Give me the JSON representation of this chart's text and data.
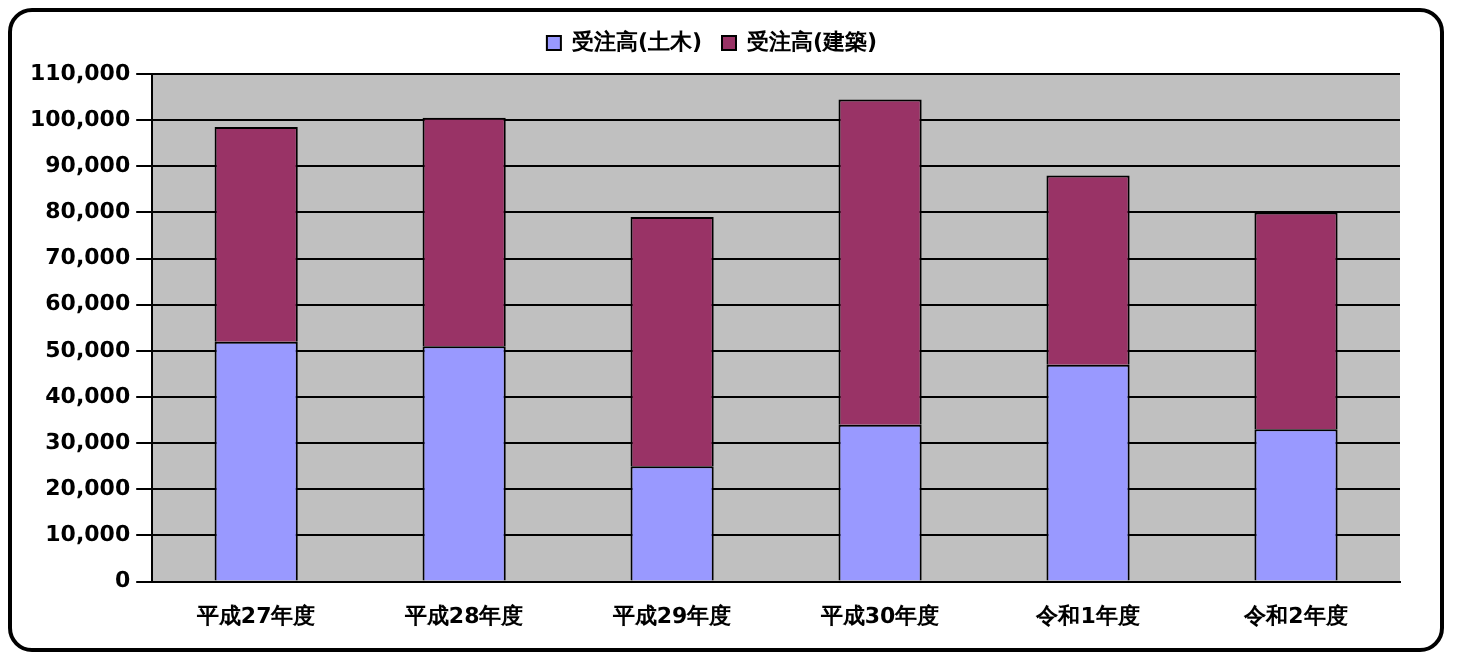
{
  "chart_data": {
    "type": "bar",
    "stacked": true,
    "categories": [
      "平成27年度",
      "平成28年度",
      "平成29年度",
      "平成30年度",
      "令和1年度",
      "令和2年度"
    ],
    "series": [
      {
        "name": "受注高(土木)",
        "color": "#9999ff",
        "values": [
          52000,
          51000,
          25000,
          34000,
          47000,
          33000
        ]
      },
      {
        "name": "受注高(建築)",
        "color": "#993366",
        "values": [
          46500,
          49500,
          54000,
          70500,
          41000,
          47000
        ]
      }
    ],
    "ylim": [
      0,
      110000
    ],
    "yticks": [
      0,
      {
        "value": 10000,
        "label": "10,000"
      },
      {
        "value": 20000,
        "label": "20,000"
      },
      {
        "value": 30000,
        "label": "30,000"
      },
      {
        "value": 40000,
        "label": "40,000"
      },
      {
        "value": 50000,
        "label": "50,000"
      },
      {
        "value": 60000,
        "label": "60,000"
      },
      {
        "value": 70000,
        "label": "70,000"
      },
      {
        "value": 80000,
        "label": "80,000"
      },
      {
        "value": 90000,
        "label": "90,000"
      },
      {
        "value": 100000,
        "label": "100,000"
      },
      {
        "value": 110000,
        "label": "110,000"
      }
    ],
    "grid": "y",
    "legend": "top"
  }
}
